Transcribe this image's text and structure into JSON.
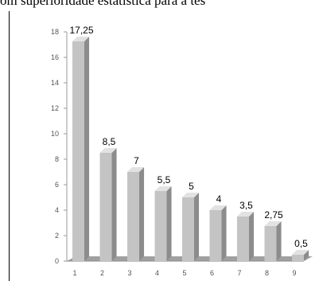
{
  "header": {
    "text": "om superioridade estatística para a tes"
  },
  "chart_data": {
    "type": "bar",
    "title": "",
    "xlabel": "",
    "ylabel": "",
    "ylim": [
      0,
      18
    ],
    "y_ticks": [
      0,
      2,
      4,
      6,
      8,
      10,
      12,
      14,
      16,
      18
    ],
    "categories": [
      "1",
      "2",
      "3",
      "4",
      "5",
      "6",
      "7",
      "8",
      "9"
    ],
    "values": [
      17.25,
      8.5,
      7,
      5.5,
      5,
      4,
      3.5,
      2.75,
      0.5
    ],
    "data_labels": [
      "17,25",
      "8,5",
      "7",
      "5,5",
      "5",
      "4",
      "3,5",
      "2,75",
      "0,5"
    ],
    "style": "3d-column",
    "grid": false,
    "colors": {
      "bar_front": "#c4c4c4",
      "bar_side": "#8c8c8c",
      "bar_top": "#e2e2e2",
      "floor": "#a0a0a0",
      "axis": "#9a9a9a"
    }
  }
}
